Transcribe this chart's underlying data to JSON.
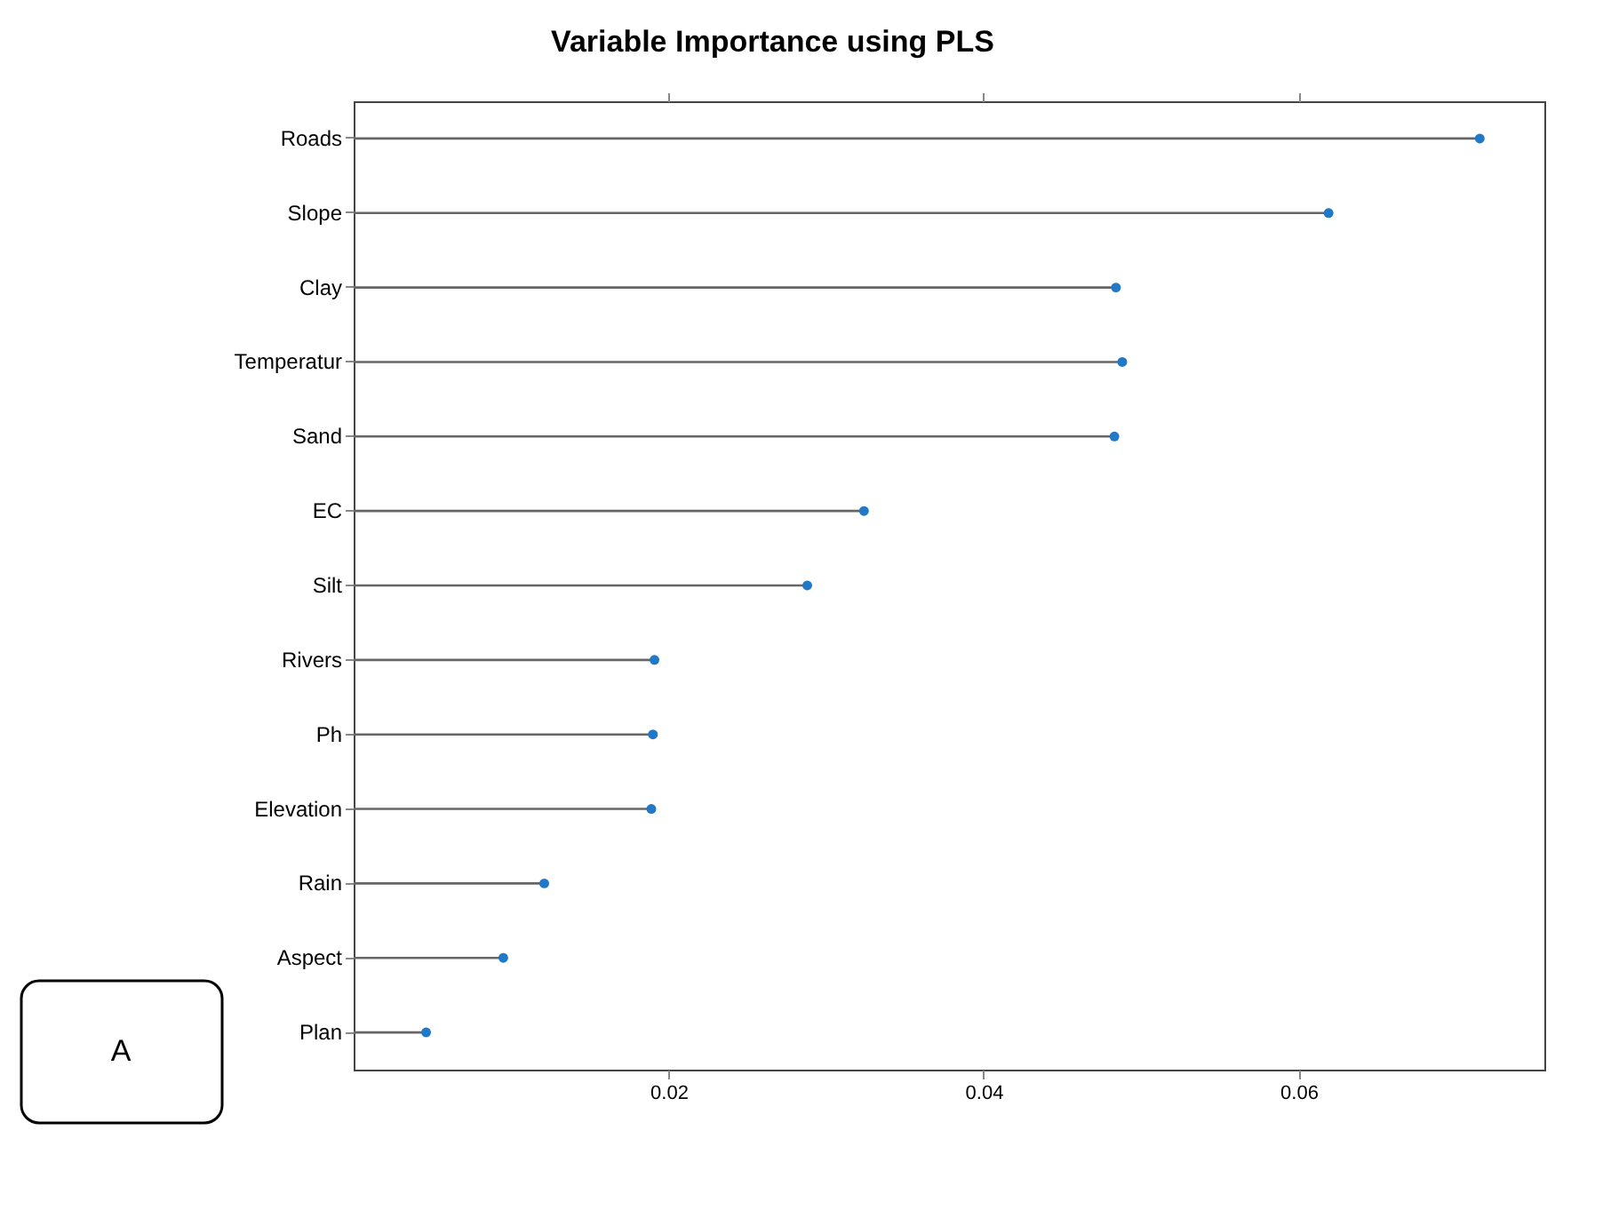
{
  "chart_data": {
    "type": "lollipop",
    "title": "Variable Importance using PLS",
    "orientation": "horizontal",
    "categories": [
      "Roads",
      "Slope",
      "Clay",
      "Temperatur",
      "Sand",
      "EC",
      "Silt",
      "Rivers",
      "Ph",
      "Elevation",
      "Rain",
      "Aspect",
      "Plan"
    ],
    "values": [
      0.0715,
      0.0619,
      0.0484,
      0.0488,
      0.0483,
      0.0324,
      0.0288,
      0.0191,
      0.019,
      0.0189,
      0.0121,
      0.0095,
      0.0046
    ],
    "color": "#1f78c8",
    "marker": "circle",
    "xlim": [
      0,
      0.0756
    ],
    "xticks": [
      0.02,
      0.04,
      0.06
    ],
    "grid": false,
    "annotations": [
      "A"
    ]
  }
}
